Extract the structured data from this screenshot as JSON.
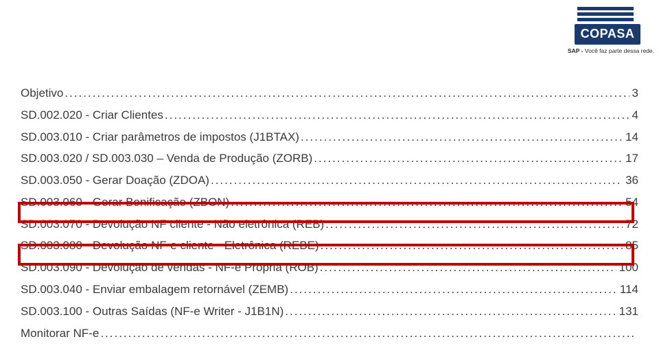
{
  "logo": {
    "text": "COPASA",
    "caption_prefix": "SAP - ",
    "caption_rest": "Você faz parte dessa rede.",
    "bar_color": "#1a3a6e",
    "box_bg": "#1a3a6e",
    "box_fg": "#ffffff"
  },
  "highlight_color": "#c00000",
  "toc": [
    {
      "label": "Objetivo",
      "page": "3"
    },
    {
      "label": "SD.002.020 - Criar Clientes",
      "page": "4"
    },
    {
      "label": "SD.003.010 - Criar parâmetros de impostos (J1BTAX)",
      "page": "14"
    },
    {
      "label": "SD.003.020 / SD.003.030 – Venda de Produção  (ZORB)",
      "page": "17"
    },
    {
      "label": "SD.003.050 - Gerar Doação (ZDOA)",
      "page": "36"
    },
    {
      "label": "SD.003.060 - Gerar Bonificação (ZBON)",
      "page": "54"
    },
    {
      "label": "SD.003.070 - Devolução NF cliente - Não eletrônica (REB)",
      "page": "72"
    },
    {
      "label": "SD.003.080 - Devolução NF-e cliente - Eletrônica (REBE)",
      "page": "85"
    },
    {
      "label": "SD.003.090 - Devolução de vendas - NF-e Própria (ROB)",
      "page": "100"
    },
    {
      "label": "SD.003.040 - Enviar embalagem retornável (ZEMB)",
      "page": "114"
    },
    {
      "label": "SD.003.100 - Outras Saídas (NF-e Writer - J1B1N)",
      "page": "131"
    },
    {
      "label": "Monitorar NF-e",
      "page": ""
    }
  ]
}
